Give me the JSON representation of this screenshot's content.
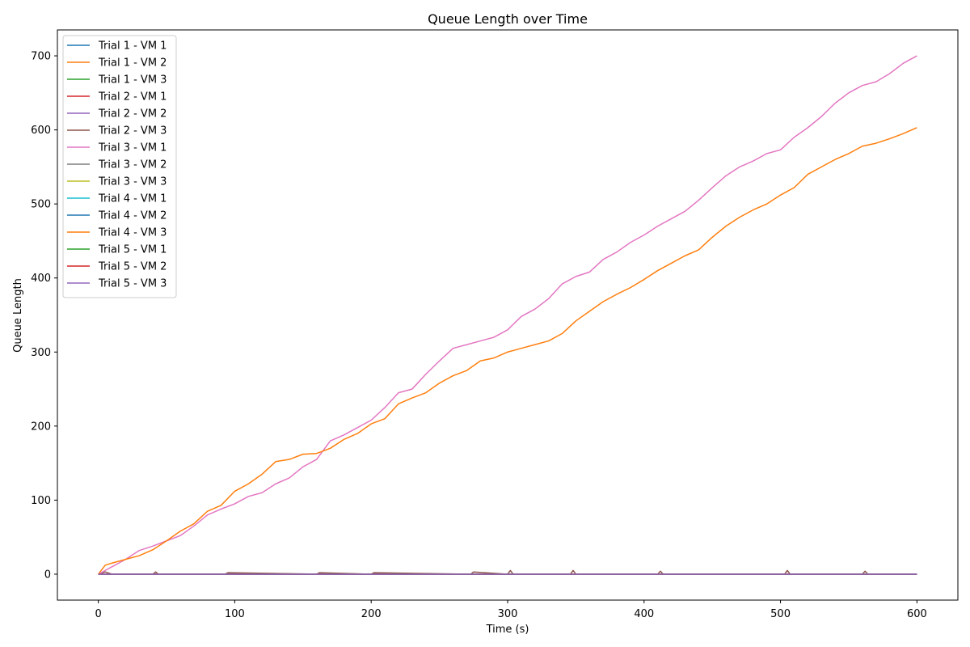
{
  "chart_data": {
    "type": "line",
    "title": "Queue Length over Time",
    "xlabel": "Time (s)",
    "ylabel": "Queue Length",
    "xlim": [
      -30,
      630
    ],
    "ylim": [
      -35,
      735
    ],
    "xticks": [
      0,
      100,
      200,
      300,
      400,
      500,
      600
    ],
    "yticks": [
      0,
      100,
      200,
      300,
      400,
      500,
      600,
      700
    ],
    "grid": false,
    "legend_position": "top-left",
    "series": [
      {
        "name": "Trial 1 - VM 1",
        "color": "#1f77b4",
        "x": [
          0,
          600
        ],
        "y": [
          0,
          0
        ]
      },
      {
        "name": "Trial 1 - VM 2",
        "color": "#ff7f0e",
        "x": [
          0,
          600
        ],
        "y": [
          0,
          0
        ]
      },
      {
        "name": "Trial 1 - VM 3",
        "color": "#2ca02c",
        "x": [
          0,
          600
        ],
        "y": [
          0,
          0
        ]
      },
      {
        "name": "Trial 2 - VM 1",
        "color": "#d62728",
        "x": [
          0,
          600
        ],
        "y": [
          0,
          0
        ]
      },
      {
        "name": "Trial 2 - VM 2",
        "color": "#9467bd",
        "x": [
          0,
          600
        ],
        "y": [
          0,
          0
        ]
      },
      {
        "name": "Trial 2 - VM 3",
        "color": "#8c564b",
        "x": [
          0,
          5,
          10,
          40,
          42,
          44,
          93,
          95,
          160,
          162,
          200,
          202,
          273,
          275,
          300,
          302,
          304,
          346,
          348,
          350,
          410,
          412,
          414,
          503,
          505,
          507,
          560,
          562,
          564,
          600
        ],
        "y": [
          0,
          3,
          0,
          0,
          3,
          0,
          0,
          2,
          0,
          2,
          0,
          2,
          0,
          3,
          0,
          5,
          0,
          0,
          5,
          0,
          0,
          4,
          0,
          0,
          5,
          0,
          0,
          4,
          0,
          0
        ]
      },
      {
        "name": "Trial 3 - VM 1",
        "color": "#e377c2",
        "x": [
          0,
          10,
          20,
          30,
          40,
          50,
          60,
          70,
          80,
          90,
          100,
          110,
          120,
          130,
          140,
          150,
          160,
          170,
          180,
          190,
          200,
          210,
          220,
          230,
          240,
          250,
          260,
          270,
          280,
          290,
          300,
          310,
          320,
          330,
          340,
          350,
          360,
          370,
          380,
          390,
          400,
          410,
          420,
          430,
          440,
          450,
          460,
          470,
          480,
          490,
          500,
          510,
          520,
          530,
          540,
          550,
          560,
          570,
          580,
          590,
          600
        ],
        "y": [
          0,
          10,
          20,
          32,
          38,
          45,
          52,
          65,
          80,
          88,
          95,
          105,
          110,
          122,
          130,
          145,
          155,
          180,
          188,
          198,
          208,
          225,
          245,
          250,
          270,
          288,
          305,
          310,
          315,
          320,
          330,
          348,
          358,
          372,
          392,
          402,
          408,
          425,
          435,
          448,
          458,
          470,
          480,
          490,
          505,
          522,
          538,
          550,
          558,
          568,
          573,
          590,
          603,
          618,
          636,
          650,
          660,
          665,
          676,
          690,
          700
        ]
      },
      {
        "name": "Trial 3 - VM 2",
        "color": "#7f7f7f",
        "x": [
          0,
          600
        ],
        "y": [
          0,
          0
        ]
      },
      {
        "name": "Trial 3 - VM 3",
        "color": "#bcbd22",
        "x": [
          0,
          600
        ],
        "y": [
          0,
          0
        ]
      },
      {
        "name": "Trial 4 - VM 1",
        "color": "#17becf",
        "x": [
          0,
          600
        ],
        "y": [
          0,
          0
        ]
      },
      {
        "name": "Trial 4 - VM 2",
        "color": "#1f77b4",
        "x": [
          0,
          600
        ],
        "y": [
          0,
          0
        ]
      },
      {
        "name": "Trial 4 - VM 3",
        "color": "#ff7f0e",
        "x": [
          0,
          5,
          10,
          20,
          30,
          40,
          50,
          60,
          70,
          80,
          90,
          100,
          110,
          120,
          130,
          140,
          150,
          160,
          170,
          180,
          190,
          200,
          210,
          220,
          230,
          240,
          250,
          260,
          270,
          280,
          290,
          300,
          310,
          320,
          330,
          340,
          350,
          360,
          370,
          380,
          390,
          400,
          410,
          420,
          430,
          440,
          450,
          460,
          470,
          480,
          490,
          500,
          510,
          520,
          530,
          540,
          550,
          560,
          570,
          580,
          590,
          600
        ],
        "y": [
          0,
          12,
          15,
          20,
          25,
          33,
          45,
          58,
          68,
          85,
          93,
          112,
          122,
          135,
          152,
          155,
          162,
          163,
          170,
          182,
          190,
          203,
          210,
          230,
          238,
          245,
          258,
          268,
          275,
          288,
          292,
          300,
          305,
          310,
          315,
          325,
          342,
          355,
          368,
          378,
          387,
          398,
          410,
          420,
          430,
          438,
          455,
          470,
          482,
          492,
          500,
          512,
          522,
          540,
          550,
          560,
          568,
          578,
          582,
          588,
          595,
          603
        ]
      },
      {
        "name": "Trial 5 - VM 1",
        "color": "#2ca02c",
        "x": [
          0,
          600
        ],
        "y": [
          0,
          0
        ]
      },
      {
        "name": "Trial 5 - VM 2",
        "color": "#d62728",
        "x": [
          0,
          600
        ],
        "y": [
          0,
          0
        ]
      },
      {
        "name": "Trial 5 - VM 3",
        "color": "#9467bd",
        "x": [
          0,
          600
        ],
        "y": [
          0,
          0
        ]
      }
    ]
  }
}
